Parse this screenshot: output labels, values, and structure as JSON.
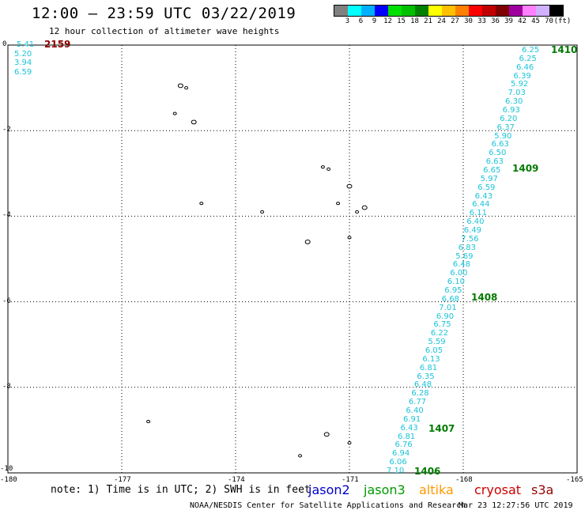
{
  "header": {
    "title": "12:00 — 23:59 UTC 03/22/2019",
    "subtitle": "12 hour collection of altimeter wave heights"
  },
  "colorbar": {
    "colors": [
      "#808080",
      "#00ffff",
      "#00b0ff",
      "#0000ff",
      "#00e000",
      "#00c000",
      "#008000",
      "#ffff00",
      "#ffc000",
      "#ff8000",
      "#ff0000",
      "#c00000",
      "#800000",
      "#a000a0",
      "#ff80ff",
      "#d0b0ff",
      "#000000"
    ],
    "labels": [
      "3",
      "6",
      "9",
      "12",
      "15",
      "18",
      "21",
      "24",
      "27",
      "30",
      "33",
      "36",
      "39",
      "42",
      "45",
      "70",
      "(ft)"
    ]
  },
  "axes": {
    "x_ticks": [
      "-180",
      "-177",
      "-174",
      "-171",
      "-168",
      "-165"
    ],
    "x_values": [
      -180,
      -177,
      -174,
      -171,
      -168,
      -165
    ],
    "y_ticks": [
      "0",
      "-2",
      "-4",
      "-6",
      "-8",
      "-10"
    ],
    "y_values": [
      0,
      -2,
      -4,
      -6,
      -8,
      -10
    ]
  },
  "corner_data": {
    "values": [
      "5.41",
      "5.20",
      "3.94",
      "6.59"
    ],
    "pass_label": "2159"
  },
  "track": {
    "values": [
      "6.25",
      "6.25",
      "6.46",
      "6.39",
      "5.92",
      "7.03",
      "6.30",
      "6.93",
      "6.20",
      "6.37",
      "5.90",
      "6.63",
      "6.50",
      "6.63",
      "6.65",
      "5.97",
      "6.59",
      "6.43",
      "6.44",
      "6.11",
      "6.40",
      "6.49",
      "7.56",
      "6.83",
      "5.69",
      "6.48",
      "6.00",
      "6.10",
      "6.95",
      "6.68",
      "7.01",
      "6.90",
      "6.75",
      "6.22",
      "5.59",
      "6.05",
      "6.13",
      "6.81",
      "6.35",
      "6.48",
      "6.28",
      "6.77",
      "6.40",
      "6.91",
      "6.43",
      "6.81",
      "6.76",
      "6.94",
      "6.06",
      "7.10"
    ],
    "pass_labels": [
      {
        "label": "1410",
        "lat": -0.1
      },
      {
        "label": "1409",
        "lat": -2.9
      },
      {
        "label": "1408",
        "lat": -5.9
      },
      {
        "label": "1407",
        "lat": -8.9
      },
      {
        "label": "1406",
        "lat": -9.9
      }
    ]
  },
  "islands": [
    {
      "lon": -175.45,
      "lat": -0.95
    },
    {
      "lon": -175.3,
      "lat": -1.0
    },
    {
      "lon": -175.6,
      "lat": -1.6
    },
    {
      "lon": -175.1,
      "lat": -1.8
    },
    {
      "lon": -171.7,
      "lat": -2.85
    },
    {
      "lon": -171.55,
      "lat": -2.9
    },
    {
      "lon": -171.0,
      "lat": -3.3
    },
    {
      "lon": -171.3,
      "lat": -3.7
    },
    {
      "lon": -170.8,
      "lat": -3.9
    },
    {
      "lon": -170.6,
      "lat": -3.8
    },
    {
      "lon": -174.9,
      "lat": -3.7
    },
    {
      "lon": -173.3,
      "lat": -3.9
    },
    {
      "lon": -172.1,
      "lat": -4.6
    },
    {
      "lon": -171.0,
      "lat": -4.5
    },
    {
      "lon": -172.3,
      "lat": -9.6
    },
    {
      "lon": -171.6,
      "lat": -9.1
    },
    {
      "lon": -171.0,
      "lat": -9.3
    },
    {
      "lon": -176.3,
      "lat": -8.8
    }
  ],
  "footer": {
    "note": "note: 1) Time is in UTC; 2) SWH is in feet",
    "satellites": [
      {
        "name": "jason2",
        "color": "#0000cc"
      },
      {
        "name": "jason3",
        "color": "#009900"
      },
      {
        "name": "altika",
        "color": "#ff9900"
      },
      {
        "name": "cryosat",
        "color": "#cc0000"
      },
      {
        "name": "s3a",
        "color": "#990000"
      }
    ],
    "credit": "NOAA/NESDIS Center for Satellite Applications and Research",
    "timestamp": "Mar 23 12:27:56 UTC 2019"
  }
}
